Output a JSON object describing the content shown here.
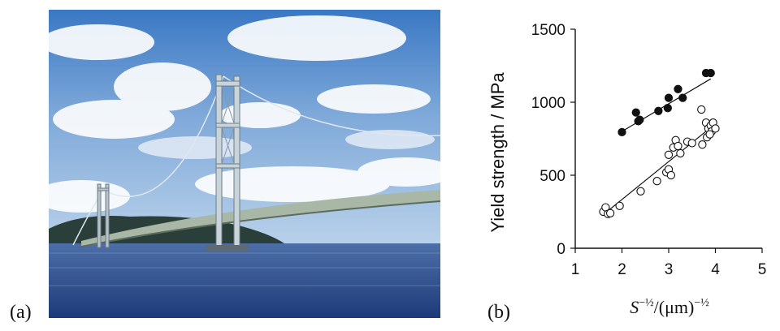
{
  "figure": {
    "panel_a_label": "(a)",
    "panel_b_label": "(b)"
  },
  "photo": {
    "subject": "suspension-bridge-photo"
  },
  "chart_data": {
    "type": "scatter",
    "xlabel": "S^(-1/2)/(µm)^(-1/2)",
    "ylabel": "Yield strength / MPa",
    "xlim": [
      1,
      5
    ],
    "ylim": [
      0,
      1500
    ],
    "x_ticks": [
      "1",
      "2",
      "3",
      "4",
      "5"
    ],
    "y_ticks": [
      "0",
      "500",
      "1000",
      "1500"
    ],
    "grid": false,
    "series": [
      {
        "marker": "filled-circle",
        "points": [
          [
            2.0,
            795
          ],
          [
            2.3,
            930
          ],
          [
            2.35,
            870
          ],
          [
            2.38,
            880
          ],
          [
            2.78,
            940
          ],
          [
            2.98,
            960
          ],
          [
            3.0,
            1030
          ],
          [
            3.2,
            1090
          ],
          [
            3.3,
            1030
          ],
          [
            3.8,
            1200
          ],
          [
            3.9,
            1200
          ]
        ],
        "fit": [
          [
            2.0,
            800
          ],
          [
            3.9,
            1160
          ]
        ]
      },
      {
        "marker": "open-circle",
        "points": [
          [
            1.6,
            250
          ],
          [
            1.65,
            280
          ],
          [
            1.7,
            235
          ],
          [
            1.75,
            240
          ],
          [
            1.95,
            290
          ],
          [
            2.4,
            390
          ],
          [
            2.75,
            460
          ],
          [
            2.95,
            520
          ],
          [
            3.0,
            640
          ],
          [
            3.0,
            540
          ],
          [
            3.05,
            500
          ],
          [
            3.1,
            690
          ],
          [
            3.15,
            740
          ],
          [
            3.2,
            700
          ],
          [
            3.25,
            650
          ],
          [
            3.4,
            730
          ],
          [
            3.5,
            720
          ],
          [
            3.7,
            950
          ],
          [
            3.72,
            710
          ],
          [
            3.8,
            860
          ],
          [
            3.82,
            760
          ],
          [
            3.85,
            820
          ],
          [
            3.9,
            840
          ],
          [
            3.92,
            800
          ],
          [
            3.95,
            860
          ],
          [
            4.0,
            820
          ],
          [
            3.88,
            780
          ]
        ],
        "fit": [
          [
            1.6,
            230
          ],
          [
            3.95,
            840
          ]
        ]
      }
    ]
  }
}
